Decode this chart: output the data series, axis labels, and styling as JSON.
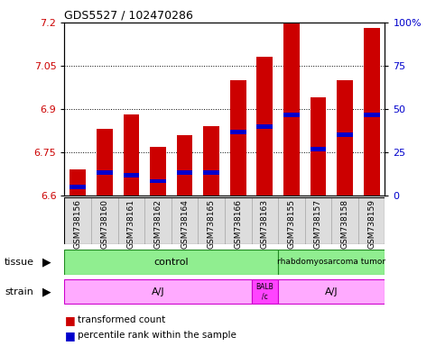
{
  "title": "GDS5527 / 102470286",
  "samples": [
    "GSM738156",
    "GSM738160",
    "GSM738161",
    "GSM738162",
    "GSM738164",
    "GSM738165",
    "GSM738166",
    "GSM738163",
    "GSM738155",
    "GSM738157",
    "GSM738158",
    "GSM738159"
  ],
  "bar_values": [
    6.69,
    6.83,
    6.88,
    6.77,
    6.81,
    6.84,
    7.0,
    7.08,
    7.2,
    6.94,
    7.0,
    7.18
  ],
  "blue_positions": [
    6.63,
    6.68,
    6.67,
    6.65,
    6.68,
    6.68,
    6.82,
    6.84,
    6.88,
    6.76,
    6.81,
    6.88
  ],
  "ymin": 6.6,
  "ymax": 7.2,
  "yticks": [
    6.6,
    6.75,
    6.9,
    7.05,
    7.2
  ],
  "right_yticks": [
    0,
    25,
    50,
    75,
    100
  ],
  "bar_color": "#cc0000",
  "blue_color": "#0000cc",
  "bar_width": 0.6,
  "tissue_color": "#90ee90",
  "tissue_border_color": "#228B22",
  "strain_color": "#ffaaff",
  "strain_border_color": "#cc00cc",
  "balb_color": "#ff44ff",
  "legend_red": "transformed count",
  "legend_blue": "percentile rank within the sample",
  "bg_color": "#ffffff",
  "tick_label_color_left": "#cc0000",
  "tick_label_color_right": "#0000cc",
  "title_color": "#000000",
  "xtick_bg": "#dddddd"
}
